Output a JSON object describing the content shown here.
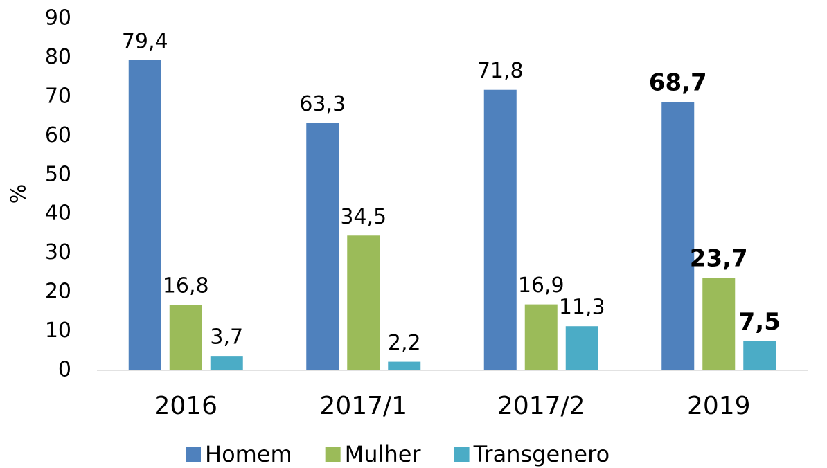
{
  "chart_data": {
    "type": "bar",
    "ylabel": "%",
    "categories": [
      "2016",
      "2017/1",
      "2017/2",
      "2019"
    ],
    "series": [
      {
        "name": "Homem",
        "color": "#4f81bd",
        "values": [
          79.4,
          63.3,
          71.8,
          68.7
        ],
        "value_labels": [
          "79,4",
          "63,3",
          "71,8",
          "68,7"
        ]
      },
      {
        "name": "Mulher",
        "color": "#9bbb59",
        "values": [
          16.8,
          34.5,
          16.9,
          23.7
        ],
        "value_labels": [
          "16,8",
          "34,5",
          "16,9",
          "23,7"
        ]
      },
      {
        "name": "Transgenero",
        "color": "#4bacc6",
        "values": [
          3.7,
          2.2,
          11.3,
          7.5
        ],
        "value_labels": [
          "3,7",
          "2,2",
          "11,3",
          "7,5"
        ]
      }
    ],
    "ylim": [
      0,
      90
    ],
    "yticks": [
      0,
      10,
      20,
      30,
      40,
      50,
      60,
      70,
      80,
      90
    ],
    "grid": false,
    "legend": "bottom"
  }
}
